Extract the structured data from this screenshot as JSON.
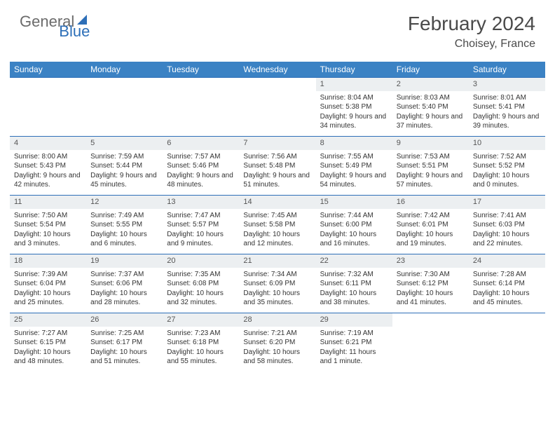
{
  "logo": {
    "part1": "General",
    "part2": "Blue"
  },
  "title": "February 2024",
  "location": "Choisey, France",
  "header_bg": "#3b82c4",
  "border_color": "#2d6fb8",
  "daynum_bg": "#eceff1",
  "weekdays": [
    "Sunday",
    "Monday",
    "Tuesday",
    "Wednesday",
    "Thursday",
    "Friday",
    "Saturday"
  ],
  "first_day_index": 4,
  "days": [
    {
      "n": "1",
      "sunrise": "Sunrise: 8:04 AM",
      "sunset": "Sunset: 5:38 PM",
      "daylight": "Daylight: 9 hours and 34 minutes."
    },
    {
      "n": "2",
      "sunrise": "Sunrise: 8:03 AM",
      "sunset": "Sunset: 5:40 PM",
      "daylight": "Daylight: 9 hours and 37 minutes."
    },
    {
      "n": "3",
      "sunrise": "Sunrise: 8:01 AM",
      "sunset": "Sunset: 5:41 PM",
      "daylight": "Daylight: 9 hours and 39 minutes."
    },
    {
      "n": "4",
      "sunrise": "Sunrise: 8:00 AM",
      "sunset": "Sunset: 5:43 PM",
      "daylight": "Daylight: 9 hours and 42 minutes."
    },
    {
      "n": "5",
      "sunrise": "Sunrise: 7:59 AM",
      "sunset": "Sunset: 5:44 PM",
      "daylight": "Daylight: 9 hours and 45 minutes."
    },
    {
      "n": "6",
      "sunrise": "Sunrise: 7:57 AM",
      "sunset": "Sunset: 5:46 PM",
      "daylight": "Daylight: 9 hours and 48 minutes."
    },
    {
      "n": "7",
      "sunrise": "Sunrise: 7:56 AM",
      "sunset": "Sunset: 5:48 PM",
      "daylight": "Daylight: 9 hours and 51 minutes."
    },
    {
      "n": "8",
      "sunrise": "Sunrise: 7:55 AM",
      "sunset": "Sunset: 5:49 PM",
      "daylight": "Daylight: 9 hours and 54 minutes."
    },
    {
      "n": "9",
      "sunrise": "Sunrise: 7:53 AM",
      "sunset": "Sunset: 5:51 PM",
      "daylight": "Daylight: 9 hours and 57 minutes."
    },
    {
      "n": "10",
      "sunrise": "Sunrise: 7:52 AM",
      "sunset": "Sunset: 5:52 PM",
      "daylight": "Daylight: 10 hours and 0 minutes."
    },
    {
      "n": "11",
      "sunrise": "Sunrise: 7:50 AM",
      "sunset": "Sunset: 5:54 PM",
      "daylight": "Daylight: 10 hours and 3 minutes."
    },
    {
      "n": "12",
      "sunrise": "Sunrise: 7:49 AM",
      "sunset": "Sunset: 5:55 PM",
      "daylight": "Daylight: 10 hours and 6 minutes."
    },
    {
      "n": "13",
      "sunrise": "Sunrise: 7:47 AM",
      "sunset": "Sunset: 5:57 PM",
      "daylight": "Daylight: 10 hours and 9 minutes."
    },
    {
      "n": "14",
      "sunrise": "Sunrise: 7:45 AM",
      "sunset": "Sunset: 5:58 PM",
      "daylight": "Daylight: 10 hours and 12 minutes."
    },
    {
      "n": "15",
      "sunrise": "Sunrise: 7:44 AM",
      "sunset": "Sunset: 6:00 PM",
      "daylight": "Daylight: 10 hours and 16 minutes."
    },
    {
      "n": "16",
      "sunrise": "Sunrise: 7:42 AM",
      "sunset": "Sunset: 6:01 PM",
      "daylight": "Daylight: 10 hours and 19 minutes."
    },
    {
      "n": "17",
      "sunrise": "Sunrise: 7:41 AM",
      "sunset": "Sunset: 6:03 PM",
      "daylight": "Daylight: 10 hours and 22 minutes."
    },
    {
      "n": "18",
      "sunrise": "Sunrise: 7:39 AM",
      "sunset": "Sunset: 6:04 PM",
      "daylight": "Daylight: 10 hours and 25 minutes."
    },
    {
      "n": "19",
      "sunrise": "Sunrise: 7:37 AM",
      "sunset": "Sunset: 6:06 PM",
      "daylight": "Daylight: 10 hours and 28 minutes."
    },
    {
      "n": "20",
      "sunrise": "Sunrise: 7:35 AM",
      "sunset": "Sunset: 6:08 PM",
      "daylight": "Daylight: 10 hours and 32 minutes."
    },
    {
      "n": "21",
      "sunrise": "Sunrise: 7:34 AM",
      "sunset": "Sunset: 6:09 PM",
      "daylight": "Daylight: 10 hours and 35 minutes."
    },
    {
      "n": "22",
      "sunrise": "Sunrise: 7:32 AM",
      "sunset": "Sunset: 6:11 PM",
      "daylight": "Daylight: 10 hours and 38 minutes."
    },
    {
      "n": "23",
      "sunrise": "Sunrise: 7:30 AM",
      "sunset": "Sunset: 6:12 PM",
      "daylight": "Daylight: 10 hours and 41 minutes."
    },
    {
      "n": "24",
      "sunrise": "Sunrise: 7:28 AM",
      "sunset": "Sunset: 6:14 PM",
      "daylight": "Daylight: 10 hours and 45 minutes."
    },
    {
      "n": "25",
      "sunrise": "Sunrise: 7:27 AM",
      "sunset": "Sunset: 6:15 PM",
      "daylight": "Daylight: 10 hours and 48 minutes."
    },
    {
      "n": "26",
      "sunrise": "Sunrise: 7:25 AM",
      "sunset": "Sunset: 6:17 PM",
      "daylight": "Daylight: 10 hours and 51 minutes."
    },
    {
      "n": "27",
      "sunrise": "Sunrise: 7:23 AM",
      "sunset": "Sunset: 6:18 PM",
      "daylight": "Daylight: 10 hours and 55 minutes."
    },
    {
      "n": "28",
      "sunrise": "Sunrise: 7:21 AM",
      "sunset": "Sunset: 6:20 PM",
      "daylight": "Daylight: 10 hours and 58 minutes."
    },
    {
      "n": "29",
      "sunrise": "Sunrise: 7:19 AM",
      "sunset": "Sunset: 6:21 PM",
      "daylight": "Daylight: 11 hours and 1 minute."
    }
  ]
}
